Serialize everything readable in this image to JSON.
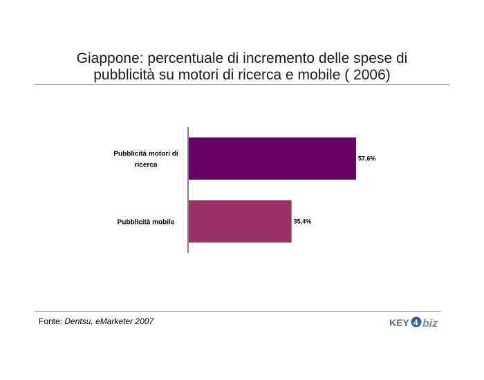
{
  "title": {
    "line1": "Giappone: percentuale di incremento delle spese di",
    "line2": "pubblicità su motori di ricerca e mobile ( 2006)"
  },
  "source": {
    "label": "Fonte:",
    "text": "Dentsu, eMarketer 2007"
  },
  "logo": {
    "part1": "KEY",
    "part2": "4",
    "part3": "biz"
  },
  "chart_data": {
    "type": "bar",
    "orientation": "horizontal",
    "categories": [
      "Pubblicità motori di ricerca",
      "Pubblicità mobile"
    ],
    "category_lines": [
      [
        "Pubblicità motori di",
        "ricerca"
      ],
      [
        "Pubblicità mobile"
      ]
    ],
    "values": [
      57.6,
      35.4
    ],
    "value_labels": [
      "57,6%",
      "35,4%"
    ],
    "colors": [
      "#660066",
      "#993366"
    ],
    "xlim": [
      0,
      100
    ],
    "grid": false,
    "legend": "none"
  }
}
